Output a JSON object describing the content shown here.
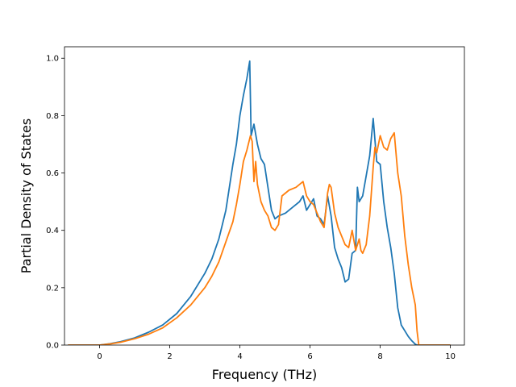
{
  "chart_data": {
    "type": "line",
    "title": "",
    "xlabel": "Frequency (THz)",
    "ylabel": "Partial Density of States",
    "xlim": [
      -1.0,
      10.4
    ],
    "ylim": [
      0.0,
      1.04
    ],
    "xticks": [
      0,
      2,
      4,
      6,
      8,
      10
    ],
    "yticks": [
      0.0,
      0.2,
      0.4,
      0.6,
      0.8,
      1.0
    ],
    "xtick_labels": [
      "0",
      "2",
      "4",
      "6",
      "8",
      "10"
    ],
    "ytick_labels": [
      "0.0",
      "0.2",
      "0.4",
      "0.6",
      "0.8",
      "1.0"
    ],
    "grid": false,
    "legend": "none",
    "series": [
      {
        "color": "#1f77b4",
        "x": [
          -0.9,
          0.0,
          0.3,
          0.6,
          1.0,
          1.4,
          1.8,
          2.2,
          2.6,
          3.0,
          3.2,
          3.4,
          3.6,
          3.8,
          3.9,
          4.0,
          4.1,
          4.2,
          4.28,
          4.32,
          4.4,
          4.5,
          4.6,
          4.7,
          4.8,
          4.9,
          5.0,
          5.1,
          5.3,
          5.5,
          5.7,
          5.8,
          5.9,
          6.0,
          6.1,
          6.2,
          6.3,
          6.4,
          6.5,
          6.6,
          6.7,
          6.8,
          6.9,
          7.0,
          7.1,
          7.2,
          7.3,
          7.35,
          7.4,
          7.5,
          7.6,
          7.7,
          7.8,
          7.9,
          8.0,
          8.1,
          8.2,
          8.3,
          8.4,
          8.5,
          8.6,
          8.7,
          8.8,
          8.9,
          9.0,
          9.05,
          9.1,
          10.0
        ],
        "y": [
          0.0,
          0.0,
          0.005,
          0.012,
          0.025,
          0.045,
          0.07,
          0.11,
          0.17,
          0.25,
          0.3,
          0.37,
          0.47,
          0.63,
          0.7,
          0.8,
          0.87,
          0.93,
          0.99,
          0.73,
          0.77,
          0.7,
          0.65,
          0.63,
          0.55,
          0.47,
          0.44,
          0.45,
          0.46,
          0.48,
          0.5,
          0.52,
          0.47,
          0.49,
          0.51,
          0.45,
          0.44,
          0.42,
          0.52,
          0.45,
          0.34,
          0.3,
          0.27,
          0.22,
          0.23,
          0.32,
          0.33,
          0.55,
          0.5,
          0.52,
          0.59,
          0.66,
          0.79,
          0.64,
          0.63,
          0.5,
          0.41,
          0.34,
          0.25,
          0.13,
          0.07,
          0.05,
          0.03,
          0.015,
          0.003,
          0.0,
          0.0,
          0.0
        ]
      },
      {
        "color": "#ff7f0e",
        "x": [
          -0.9,
          0.0,
          0.3,
          0.6,
          1.0,
          1.4,
          1.8,
          2.2,
          2.6,
          3.0,
          3.2,
          3.4,
          3.6,
          3.8,
          3.9,
          4.0,
          4.1,
          4.2,
          4.3,
          4.35,
          4.4,
          4.45,
          4.5,
          4.6,
          4.7,
          4.8,
          4.9,
          5.0,
          5.1,
          5.2,
          5.4,
          5.6,
          5.8,
          5.9,
          6.0,
          6.1,
          6.2,
          6.3,
          6.4,
          6.5,
          6.55,
          6.6,
          6.7,
          6.8,
          6.9,
          7.0,
          7.1,
          7.2,
          7.3,
          7.4,
          7.45,
          7.5,
          7.6,
          7.7,
          7.8,
          7.85,
          7.9,
          8.0,
          8.1,
          8.2,
          8.3,
          8.4,
          8.5,
          8.6,
          8.7,
          8.8,
          8.9,
          9.0,
          9.05,
          9.1,
          10.0
        ],
        "y": [
          0.0,
          0.0,
          0.004,
          0.01,
          0.022,
          0.038,
          0.06,
          0.095,
          0.14,
          0.2,
          0.24,
          0.29,
          0.36,
          0.43,
          0.49,
          0.56,
          0.64,
          0.68,
          0.73,
          0.71,
          0.57,
          0.64,
          0.56,
          0.5,
          0.47,
          0.45,
          0.41,
          0.4,
          0.42,
          0.52,
          0.54,
          0.55,
          0.57,
          0.52,
          0.5,
          0.49,
          0.46,
          0.43,
          0.41,
          0.53,
          0.56,
          0.55,
          0.46,
          0.41,
          0.38,
          0.35,
          0.34,
          0.4,
          0.33,
          0.37,
          0.33,
          0.32,
          0.35,
          0.45,
          0.62,
          0.69,
          0.67,
          0.73,
          0.69,
          0.68,
          0.72,
          0.74,
          0.6,
          0.52,
          0.38,
          0.28,
          0.2,
          0.14,
          0.05,
          0.0,
          0.0
        ]
      }
    ]
  }
}
